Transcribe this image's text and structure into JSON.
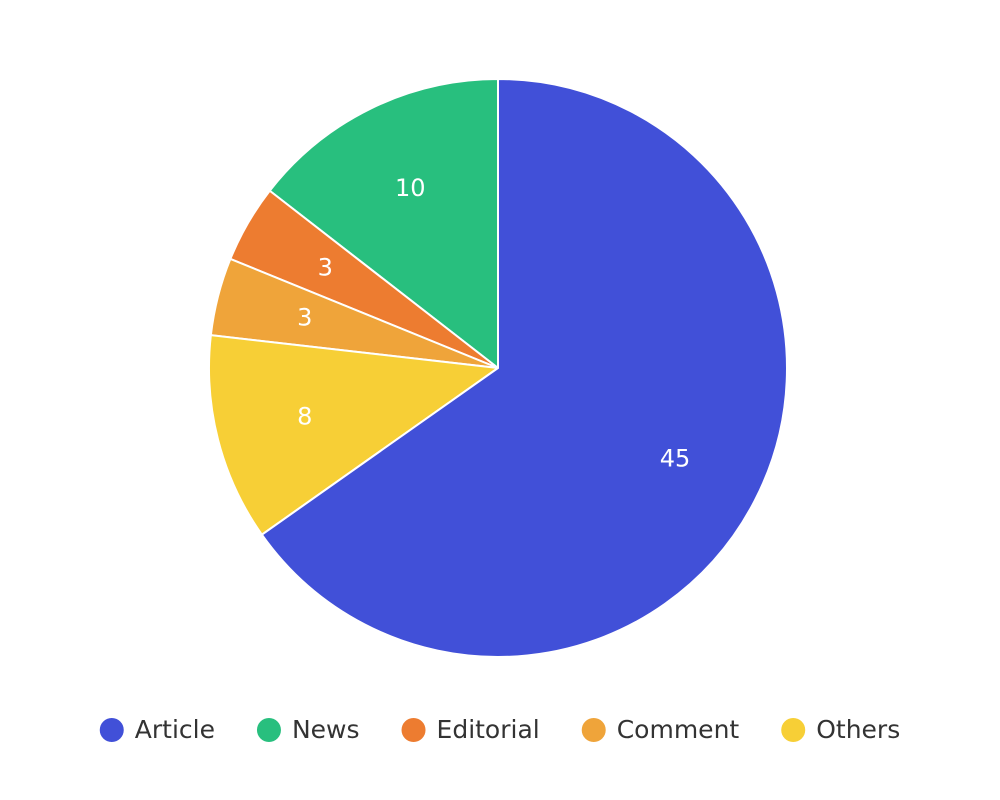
{
  "chart_data": {
    "type": "pie",
    "categories": [
      "Article",
      "News",
      "Editorial",
      "Comment",
      "Others"
    ],
    "values": [
      45,
      10,
      3,
      3,
      8
    ],
    "colors": [
      "#4150d8",
      "#28bf7e",
      "#ed7c30",
      "#efa43a",
      "#f7cf36"
    ],
    "legend": "bottom"
  }
}
